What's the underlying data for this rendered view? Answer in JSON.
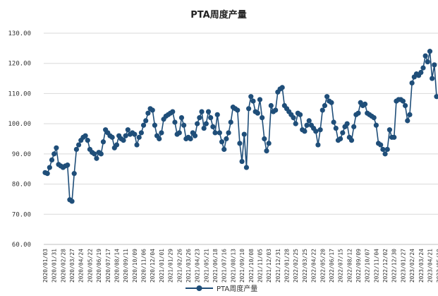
{
  "chart_data": {
    "type": "line",
    "title": "PTA周度产量",
    "xlabel": "",
    "ylabel": "",
    "ylim": [
      60,
      130
    ],
    "y_ticks": [
      "60.00",
      "70.00",
      "80.00",
      "90.00",
      "100.00",
      "110.00",
      "120.00",
      "130.00"
    ],
    "grid": "horizontal",
    "legend_position": "bottom",
    "colors": {
      "series": "#1f4e79",
      "grid": "#d9d9d9"
    },
    "x_tick_labels": [
      "2020/01/03",
      "2020/01/31",
      "2020/02/28",
      "2020/03/27",
      "2020/04/24",
      "2020/05/22",
      "2020/06/19",
      "2020/07/17",
      "2020/08/14",
      "2020/09/11",
      "2020/10/09",
      "2020/11/06",
      "2020/12/04",
      "2021/01/01",
      "2021/01/29",
      "2021/02/26",
      "2021/03/26",
      "2021/04/23",
      "2021/05/21",
      "2021/06/18",
      "2021/07/16",
      "2021/08/13",
      "2021/09/10",
      "2021/10/08",
      "2021/11/05",
      "2021/12/03",
      "2021/12/31",
      "2022/01/28",
      "2022/02/25",
      "2022/03/25",
      "2022/04/22",
      "2022/05/20",
      "2022/06/17",
      "2022/07/15",
      "2022/08/12",
      "2022/09/09",
      "2022/10/07",
      "2022/11/04",
      "2022/12/02",
      "2022/12/30",
      "2023/01/27",
      "2023/02/24",
      "2023/03/24",
      "2023/04/21",
      "2023/05/19"
    ],
    "series": [
      {
        "name": "PTA周度产量",
        "values": [
          83.8,
          83.5,
          85.5,
          88.0,
          90.0,
          92.0,
          86.5,
          86.0,
          85.5,
          86.0,
          86.3,
          74.8,
          74.3,
          83.5,
          91.5,
          93.0,
          94.5,
          95.5,
          96.0,
          94.5,
          91.5,
          90.5,
          90.0,
          88.5,
          90.5,
          90.0,
          94.0,
          98.0,
          97.0,
          96.0,
          95.5,
          92.0,
          93.0,
          96.0,
          95.0,
          94.5,
          96.0,
          98.0,
          96.5,
          97.0,
          96.5,
          93.0,
          95.5,
          97.0,
          99.5,
          101.0,
          103.5,
          105.0,
          104.5,
          99.5,
          96.0,
          95.0,
          97.0,
          101.5,
          102.5,
          103.0,
          103.5,
          104.0,
          100.5,
          96.5,
          97.0,
          102.0,
          99.5,
          95.0,
          95.5,
          95.0,
          97.0,
          96.0,
          100.0,
          102.0,
          104.0,
          98.5,
          100.0,
          104.0,
          102.0,
          99.0,
          97.0,
          103.0,
          97.0,
          94.0,
          91.5,
          95.0,
          97.0,
          100.5,
          105.5,
          105.0,
          104.5,
          93.5,
          87.5,
          96.5,
          85.5,
          105.0,
          109.0,
          107.5,
          104.0,
          103.5,
          108.0,
          102.0,
          95.0,
          91.0,
          93.5,
          106.0,
          104.0,
          104.5,
          110.5,
          111.5,
          112.0,
          106.0,
          105.0,
          104.0,
          103.0,
          102.0,
          100.0,
          103.5,
          103.0,
          98.0,
          97.5,
          99.5,
          101.0,
          99.5,
          98.5,
          97.5,
          93.0,
          98.0,
          104.5,
          106.0,
          109.0,
          107.5,
          107.0,
          100.5,
          98.5,
          94.5,
          95.0,
          97.0,
          99.0,
          100.0,
          95.5,
          94.5,
          99.0,
          103.0,
          103.5,
          107.0,
          106.0,
          106.5,
          103.5,
          103.0,
          102.5,
          102.0,
          99.5,
          93.5,
          93.0,
          91.5,
          90.0,
          91.5,
          98.0,
          95.5,
          95.5,
          107.5,
          108.0,
          108.0,
          107.5,
          106.0,
          101.0,
          103.0,
          113.5,
          115.5,
          116.5,
          116.0,
          117.0,
          118.5,
          122.5,
          120.5,
          124.0,
          115.0,
          119.5,
          109.0
        ]
      }
    ]
  }
}
